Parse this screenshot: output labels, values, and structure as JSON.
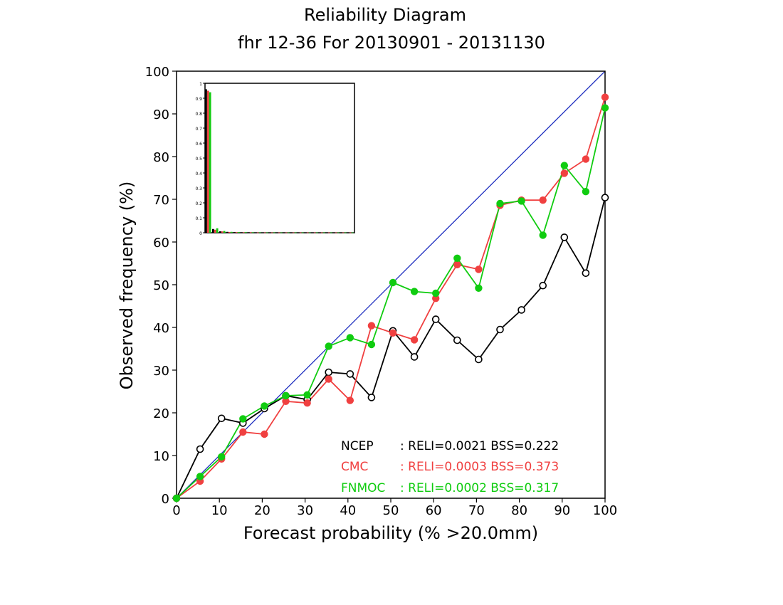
{
  "chart_data": {
    "type": "line",
    "title": "Reliability Diagram",
    "subtitle": "fhr 12-36 For 20130901 - 20131130",
    "xlabel": "Forecast probability (% >20.0mm)",
    "ylabel": "Observed frequency (%)",
    "xlim": [
      0,
      100
    ],
    "ylim": [
      0,
      100
    ],
    "xticks": [
      "0",
      "10",
      "20",
      "30",
      "40",
      "50",
      "60",
      "70",
      "80",
      "90",
      "100"
    ],
    "yticks": [
      "0",
      "10",
      "20",
      "30",
      "40",
      "50",
      "60",
      "70",
      "80",
      "90",
      "100"
    ],
    "reference_line": {
      "from": [
        0,
        0
      ],
      "to": [
        100,
        100
      ],
      "color": "#2030c0"
    },
    "x": [
      0,
      5.5,
      10.5,
      15.5,
      20.5,
      25.5,
      30.5,
      35.5,
      40.5,
      45.5,
      50.5,
      55.5,
      60.5,
      65.5,
      70.5,
      75.5,
      80.5,
      85.5,
      90.5,
      95.5,
      100
    ],
    "series": [
      {
        "name": "NCEP",
        "color": "#000000",
        "marker": "open-circle",
        "values": [
          0,
          11.5,
          18.7,
          17.6,
          21.0,
          24.0,
          23.1,
          29.5,
          29.1,
          23.6,
          39.2,
          33.1,
          41.9,
          37.0,
          32.5,
          39.5,
          44.1,
          49.8,
          61.1,
          52.7,
          70.4
        ],
        "stats": ": RELI=0.0021  BSS=0.222"
      },
      {
        "name": "CMC",
        "color": "#f04040",
        "marker": "filled-circle",
        "values": [
          0,
          4.0,
          9.2,
          15.5,
          15.0,
          22.7,
          22.3,
          27.9,
          22.9,
          40.4,
          38.7,
          37.1,
          46.8,
          54.7,
          53.6,
          68.6,
          69.8,
          69.8,
          76.1,
          79.4,
          93.9
        ],
        "stats": ": RELI=0.0003  BSS=0.373"
      },
      {
        "name": "FNMOC",
        "color": "#10cc10",
        "marker": "filled-circle",
        "values": [
          0,
          5.1,
          9.7,
          18.6,
          21.6,
          24.0,
          24.2,
          35.6,
          37.6,
          36.0,
          50.5,
          48.4,
          48.0,
          56.2,
          49.2,
          69.0,
          69.6,
          61.6,
          77.9,
          71.8,
          91.4
        ],
        "stats": ": RELI=0.0002  BSS=0.317"
      }
    ],
    "inset": {
      "type": "bar",
      "description_ticks": [
        "0",
        "0.1",
        "0.2",
        "0.3",
        "0.4",
        "0.5",
        "0.6",
        "0.7",
        "0.8",
        "0.9",
        "1"
      ],
      "ylim": [
        0,
        1
      ],
      "series": [
        {
          "name": "NCEP",
          "color": "#000000",
          "values": [
            0.96,
            0.025,
            0.01,
            0.006,
            0.004,
            0.003,
            0.003,
            0.002,
            0.002,
            0.002,
            0.002,
            0.002,
            0.002,
            0.002,
            0.002,
            0.002,
            0.002,
            0.002,
            0.002,
            0.002,
            0.002
          ]
        },
        {
          "name": "CMC",
          "color": "#f04040",
          "values": [
            0.95,
            0.02,
            0.009,
            0.005,
            0.004,
            0.003,
            0.003,
            0.002,
            0.002,
            0.002,
            0.002,
            0.002,
            0.002,
            0.002,
            0.002,
            0.002,
            0.002,
            0.002,
            0.002,
            0.002,
            0.002
          ]
        },
        {
          "name": "FNMOC",
          "color": "#10cc10",
          "values": [
            0.94,
            0.03,
            0.012,
            0.006,
            0.005,
            0.004,
            0.003,
            0.003,
            0.002,
            0.002,
            0.002,
            0.002,
            0.002,
            0.002,
            0.002,
            0.002,
            0.002,
            0.002,
            0.002,
            0.002,
            0.002
          ]
        }
      ]
    }
  }
}
